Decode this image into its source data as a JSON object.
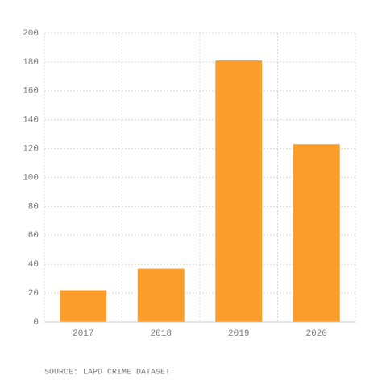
{
  "chart_data": {
    "type": "bar",
    "categories": [
      "2017",
      "2018",
      "2019",
      "2020"
    ],
    "values": [
      22,
      37,
      181,
      123
    ],
    "color": "#fb9d2b",
    "ylim": [
      0,
      200
    ],
    "yticks": [
      0,
      20,
      40,
      60,
      80,
      100,
      120,
      140,
      160,
      180,
      200
    ],
    "grid": true,
    "source": "SOURCE: LAPD CRIME DATASET"
  }
}
